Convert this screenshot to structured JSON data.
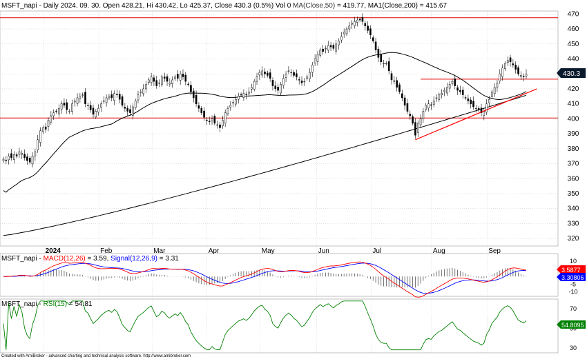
{
  "header": {
    "symbol": "MSFT_napi",
    "period": "Daily 2024. 09. 30.",
    "open_label": "Open",
    "open": "428.21",
    "hi_label": "Hi",
    "hi": "430.42",
    "lo_label": "Lo",
    "lo": "425.37",
    "close_label": "Close",
    "close": "430.3",
    "change": "(0.5%)",
    "vol": "Vol 0",
    "ma50_label": "MA(Close,50)",
    "ma50": "419.77",
    "ma200_label": "MA1(Close,200)",
    "ma200": "415.67"
  },
  "price_badge": "430.3",
  "macd": {
    "title": "MSFT_napi",
    "label": "MACD(12,26)",
    "value": "3.59",
    "signal_label": "Signal(12,26,9)",
    "signal_value": "3.31",
    "badge_macd": "3.5877",
    "badge_signal": "3.30806"
  },
  "rsi": {
    "title": "MSFT_napi",
    "label": "RSI(15)",
    "value": "54.81",
    "badge": "54.8095"
  },
  "footer": "Created with AmiBroker - advanced charting and technical analysis software. http://www.amibroker.com",
  "colors": {
    "macd_line": "#ff0000",
    "signal_line": "#0000ff",
    "ma_line": "#000000",
    "level_line": "#e00000",
    "trend_line": "#ff0000",
    "rsi_line": "#008000",
    "badge_bg": "#000000",
    "macd_badge_bg": "#ff0000",
    "signal_badge_bg": "#0000ff",
    "rsi_badge_bg": "#008000"
  },
  "chart_data": [
    {
      "type": "candlestick",
      "title": "MSFT_napi - Daily 2024. 09. 30.",
      "ylim": [
        315,
        472
      ],
      "yticks": [
        320,
        330,
        340,
        350,
        360,
        370,
        380,
        390,
        400,
        410,
        420,
        430,
        440,
        450,
        460,
        470
      ],
      "months": [
        "2024",
        "Feb",
        "Mar",
        "Apr",
        "May",
        "Jun",
        "Jul",
        "Aug",
        "Sep"
      ],
      "closes": [
        373,
        372,
        375,
        374,
        376,
        375,
        378,
        377,
        374,
        372,
        371,
        375,
        378,
        386,
        392,
        394,
        393,
        399,
        402,
        404,
        405,
        407,
        410,
        409,
        406,
        405,
        410,
        412,
        414,
        415,
        416,
        410,
        409,
        406,
        403,
        405,
        407,
        410,
        412,
        414,
        415,
        414,
        417,
        416,
        413,
        409,
        407,
        405,
        404,
        408,
        412,
        416,
        418,
        420,
        423,
        426,
        428,
        425,
        422,
        424,
        428,
        427,
        425,
        424,
        426,
        428,
        427,
        430,
        428,
        425,
        423,
        418,
        414,
        410,
        407,
        404,
        401,
        399,
        398,
        400,
        397,
        396,
        394,
        399,
        404,
        407,
        409,
        411,
        413,
        415,
        416,
        417,
        416,
        418,
        421,
        425,
        428,
        431,
        432,
        430,
        429,
        427,
        422,
        420,
        419,
        423,
        427,
        430,
        432,
        431,
        429,
        428,
        426,
        424,
        425,
        428,
        431,
        436,
        440,
        443,
        446,
        445,
        447,
        449,
        448,
        447,
        450,
        452,
        455,
        458,
        460,
        462,
        464,
        465,
        466,
        466,
        465,
        462,
        459,
        456,
        452,
        446,
        441,
        438,
        437,
        437,
        432,
        426,
        425,
        421,
        418,
        414,
        409,
        405,
        402,
        397,
        389,
        397,
        400,
        405,
        409,
        410,
        409,
        412,
        414,
        416,
        417,
        419,
        421,
        423,
        425,
        422,
        419,
        418,
        416,
        414,
        412,
        410,
        408,
        407,
        406,
        404,
        405,
        410,
        413,
        418,
        421,
        424,
        430,
        434,
        437,
        439,
        438,
        436,
        433,
        430,
        429,
        428,
        430
      ],
      "ma50_label": "MA(Close,50)",
      "ma50_last": 419.77,
      "ma200_label": "MA1(Close,200)",
      "ma200_last": 415.67,
      "levels": [
        467.5,
        426.5,
        400.5
      ],
      "trendline": [
        [
          156,
          386
        ],
        [
          202,
          420
        ]
      ]
    },
    {
      "type": "line",
      "name": "MACD",
      "ylim": [
        -13,
        15
      ],
      "yticks": [
        -10,
        -5,
        0,
        5,
        10
      ],
      "series": [
        {
          "name": "MACD(12,26)"
        },
        {
          "name": "Signal(12,26,9)"
        }
      ],
      "last": {
        "macd": 3.59,
        "signal": 3.31
      }
    },
    {
      "type": "line",
      "name": "RSI",
      "ylim": [
        25,
        80
      ],
      "yticks": [
        30,
        50,
        70
      ],
      "series": [
        {
          "name": "RSI(15)"
        }
      ],
      "last": 54.81
    }
  ]
}
